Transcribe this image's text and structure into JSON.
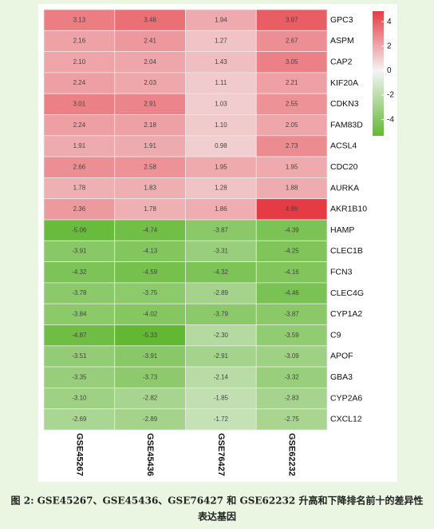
{
  "chart_data": {
    "type": "heatmap",
    "caption": "图 2: GSE45267、GSE45436、GSE76427 和 GSE62232 升高和下降排名前十的差异性表达基因",
    "columns": [
      "GSE45267",
      "GSE45436",
      "GSE76427",
      "GSE62232"
    ],
    "rows": [
      "GPC3",
      "ASPM",
      "CAP2",
      "KIF20A",
      "CDKN3",
      "FAM83D",
      "ACSL4",
      "CDC20",
      "AURKA",
      "AKR1B10",
      "HAMP",
      "CLEC1B",
      "FCN3",
      "CLEC4G",
      "CYP1A2",
      "C9",
      "APOF",
      "GBA3",
      "CYP2A6",
      "CXCL12"
    ],
    "values": [
      [
        3.13,
        3.48,
        1.94,
        3.97
      ],
      [
        2.16,
        2.41,
        1.27,
        2.67
      ],
      [
        2.1,
        2.04,
        1.43,
        3.05
      ],
      [
        2.24,
        2.03,
        1.11,
        2.21
      ],
      [
        3.01,
        2.91,
        1.03,
        2.55
      ],
      [
        2.24,
        2.18,
        1.1,
        2.05
      ],
      [
        1.91,
        1.91,
        0.98,
        2.73
      ],
      [
        2.66,
        2.58,
        1.95,
        1.95
      ],
      [
        1.78,
        1.83,
        1.28,
        1.88
      ],
      [
        2.36,
        1.78,
        1.86,
        4.86
      ],
      [
        -5.06,
        -4.74,
        -3.87,
        -4.39
      ],
      [
        -3.91,
        -4.13,
        -3.31,
        -4.25
      ],
      [
        -4.32,
        -4.59,
        -4.32,
        -4.16
      ],
      [
        -3.78,
        -3.75,
        -2.89,
        -4.46
      ],
      [
        -3.84,
        -4.02,
        -3.79,
        -3.87
      ],
      [
        -4.87,
        -5.33,
        -2.3,
        -3.59
      ],
      [
        -3.51,
        -3.91,
        -2.91,
        -3.09
      ],
      [
        -3.35,
        -3.73,
        -2.14,
        -3.32
      ],
      [
        -3.1,
        -2.82,
        -1.85,
        -2.83
      ],
      [
        -2.69,
        -2.89,
        -1.72,
        -2.75
      ]
    ],
    "value_labels": [
      [
        "3.13",
        "3.48",
        "1.94",
        "3.97"
      ],
      [
        "2.16",
        "2.41",
        "1.27",
        "2.67"
      ],
      [
        "2.10",
        "2.04",
        "1.43",
        "3.05"
      ],
      [
        "2.24",
        "2.03",
        "1.11",
        "2.21"
      ],
      [
        "3.01",
        "2.91",
        "1.03",
        "2.55"
      ],
      [
        "2.24",
        "2.18",
        "1.10",
        "2.05"
      ],
      [
        "1.91",
        "1.91",
        "0.98",
        "2.73"
      ],
      [
        "2.66",
        "2.58",
        "1.95",
        "1.95"
      ],
      [
        "1.78",
        "1.83",
        "1.28",
        "1.88"
      ],
      [
        "2.36",
        "1.78",
        "1.86",
        "4.86"
      ],
      [
        "-5.06",
        "-4.74",
        "-3.87",
        "-4.39"
      ],
      [
        "-3.91",
        "-4.13",
        "-3.31",
        "-4.25"
      ],
      [
        "-4.32",
        "-4.59",
        "-4.32",
        "-4.16"
      ],
      [
        "-3.78",
        "-3.75",
        "-2.89",
        "-4.46"
      ],
      [
        "-3.84",
        "-4.02",
        "-3.79",
        "-3.87"
      ],
      [
        "-4.87",
        "-5.33",
        "-2.30",
        "-3.59"
      ],
      [
        "-3.51",
        "-3.91",
        "-2.91",
        "-3.09"
      ],
      [
        "-3.35",
        "-3.73",
        "-2.14",
        "-3.32"
      ],
      [
        "-3.10",
        "-2.82",
        "-1.85",
        "-2.83"
      ],
      [
        "-2.69",
        "-2.89",
        "-1.72",
        "-2.75"
      ]
    ],
    "zlim": [
      -5.33,
      4.86
    ],
    "zticks": [
      4,
      2,
      0,
      -2,
      -4
    ],
    "colors": {
      "low": "#62b833",
      "mid": "#f4f4f4",
      "high": "#e63b44"
    }
  }
}
